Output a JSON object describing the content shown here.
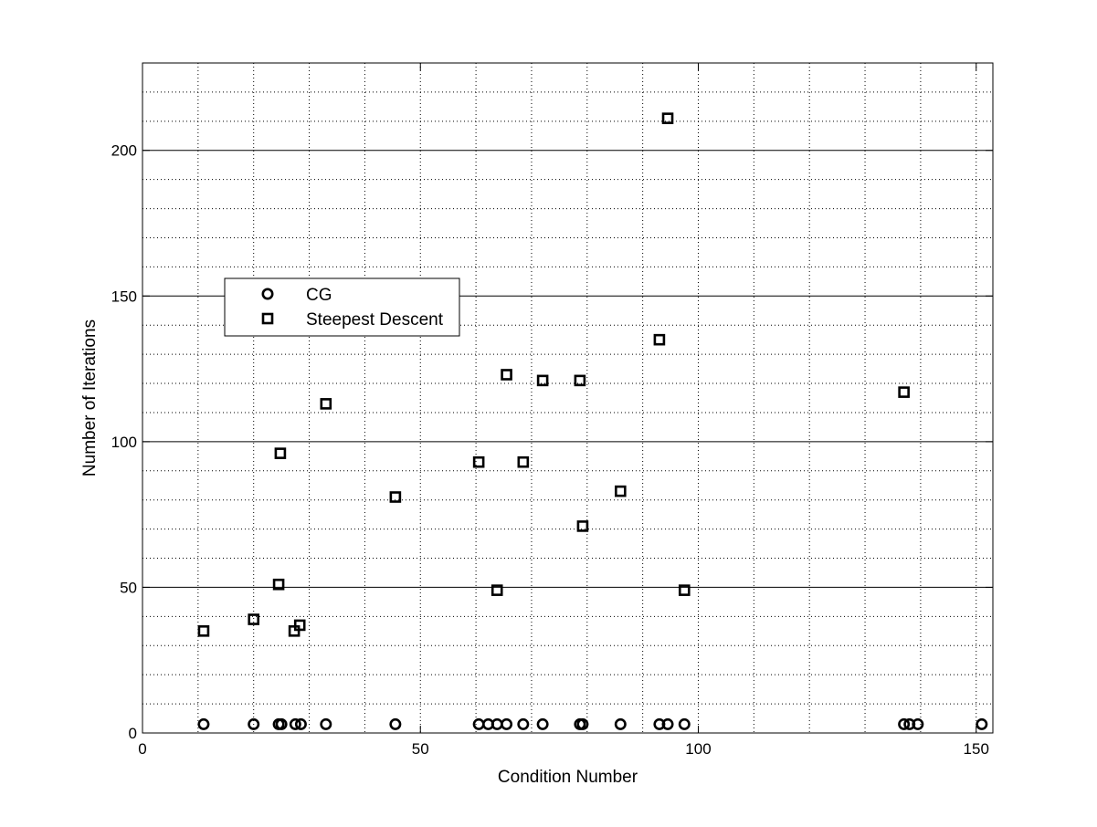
{
  "chart_data": {
    "type": "scatter",
    "title": "",
    "xlabel": "Condition Number",
    "ylabel": "Number of Iterations",
    "xlim": [
      0,
      153
    ],
    "ylim": [
      0,
      230
    ],
    "xticks": [
      0,
      50,
      100,
      150
    ],
    "yticks": [
      0,
      50,
      100,
      150,
      200
    ],
    "grid": "on (dotted minor grid, solid major horizontal lines)",
    "legend_placement": "upper-left",
    "series": [
      {
        "name": "CG",
        "marker": "circle",
        "color": "#000000",
        "points": [
          [
            11,
            3
          ],
          [
            20,
            3
          ],
          [
            24.5,
            3
          ],
          [
            25,
            3
          ],
          [
            27.5,
            3
          ],
          [
            28.5,
            3
          ],
          [
            33,
            3
          ],
          [
            45.5,
            3
          ],
          [
            60.5,
            3
          ],
          [
            62.2,
            3
          ],
          [
            63.8,
            3
          ],
          [
            65.5,
            3
          ],
          [
            68.5,
            3
          ],
          [
            72,
            3
          ],
          [
            78.7,
            3
          ],
          [
            79.2,
            3
          ],
          [
            86,
            3
          ],
          [
            93,
            3
          ],
          [
            94.5,
            3
          ],
          [
            97.5,
            3
          ],
          [
            137,
            3
          ],
          [
            138,
            3
          ],
          [
            139.5,
            3
          ],
          [
            151,
            3
          ]
        ]
      },
      {
        "name": "Steepest Descent",
        "marker": "square",
        "color": "#000000",
        "points": [
          [
            11,
            35
          ],
          [
            20,
            39
          ],
          [
            24.5,
            51
          ],
          [
            24.8,
            96
          ],
          [
            27.3,
            35
          ],
          [
            28.3,
            37
          ],
          [
            33,
            113
          ],
          [
            45.5,
            81
          ],
          [
            60.5,
            93
          ],
          [
            63.8,
            49
          ],
          [
            65.5,
            123
          ],
          [
            68.5,
            93
          ],
          [
            72,
            121
          ],
          [
            78.7,
            121
          ],
          [
            79.2,
            71
          ],
          [
            86,
            83
          ],
          [
            93,
            135
          ],
          [
            94.5,
            211
          ],
          [
            97.5,
            49
          ],
          [
            137,
            117
          ]
        ]
      }
    ]
  }
}
